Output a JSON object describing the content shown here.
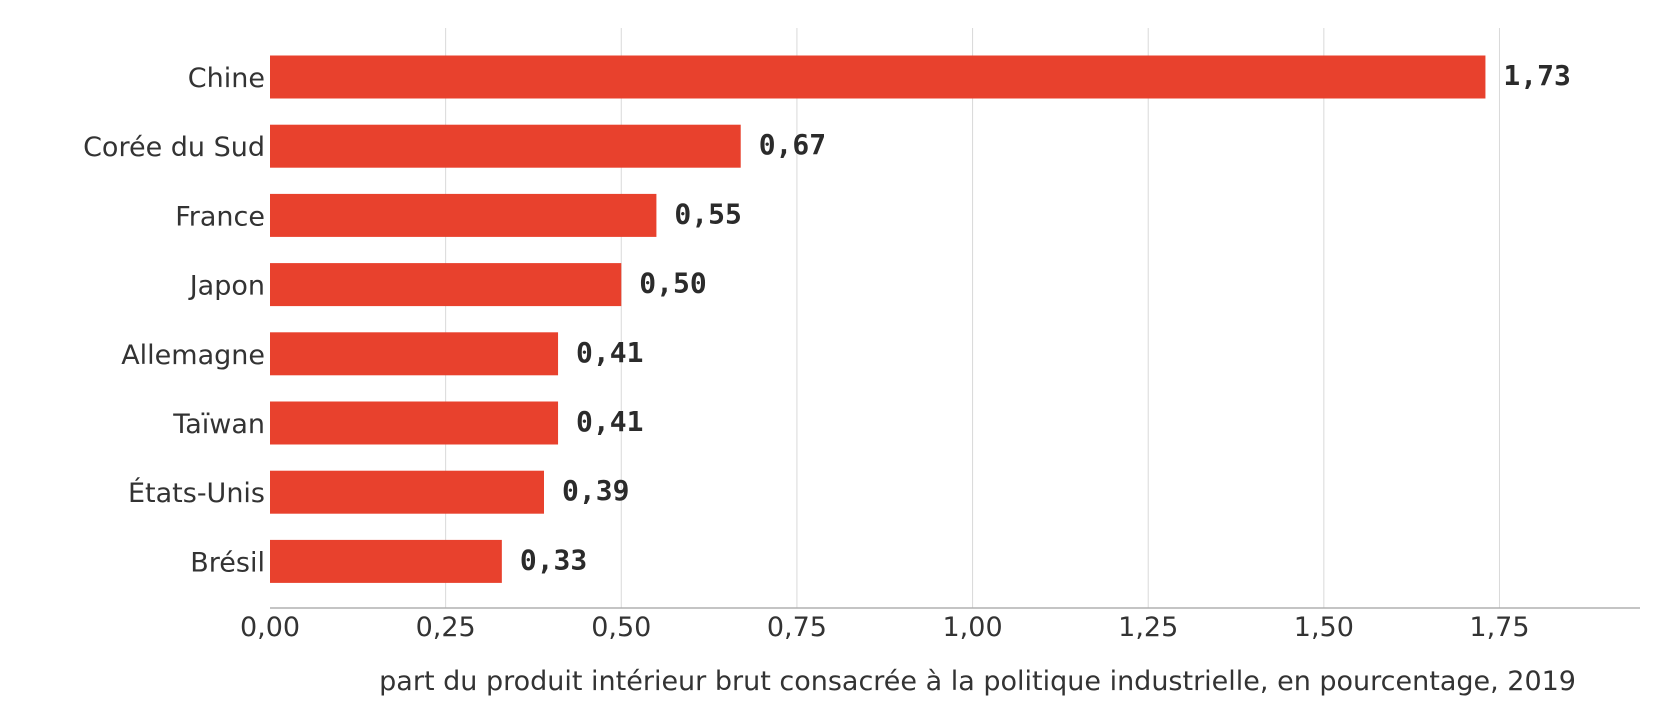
{
  "chart_data": {
    "type": "bar",
    "orientation": "horizontal",
    "categories": [
      "Chine",
      "Corée du Sud",
      "France",
      "Japon",
      "Allemagne",
      "Taïwan",
      "États-Unis",
      "Brésil"
    ],
    "values": [
      1.73,
      0.67,
      0.55,
      0.5,
      0.41,
      0.41,
      0.39,
      0.33
    ],
    "value_labels": [
      "1,73",
      "0,67",
      "0,55",
      "0,50",
      "0,41",
      "0,41",
      "0,39",
      "0,33"
    ],
    "x_ticks": [
      0,
      0.25,
      0.5,
      0.75,
      1.0,
      1.25,
      1.5,
      1.75
    ],
    "x_tick_labels": [
      "0,00",
      "0,25",
      "0,50",
      "0,75",
      "1,00",
      "1,25",
      "1,50",
      "1,75"
    ],
    "xlabel": "part du produit intérieur brut consacrée à la politique industrielle, en pourcentage, 2019",
    "ylabel": "",
    "title": "",
    "xlim": [
      0,
      1.95
    ],
    "grid": "vertical",
    "bar_color": "#e8412d"
  }
}
